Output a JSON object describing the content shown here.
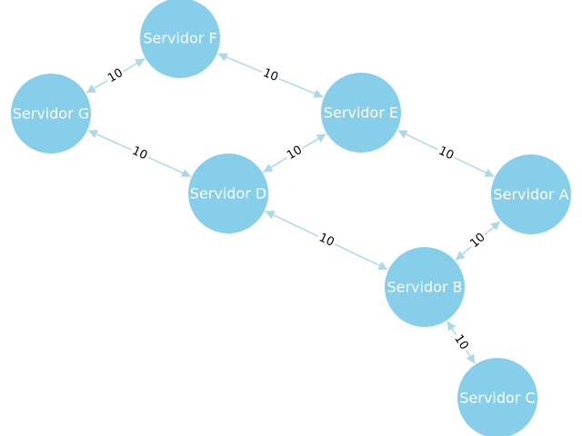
{
  "colors": {
    "node_fill": "#87ceeb",
    "node_text": "#ffffff",
    "edge": "#add8e6",
    "label_text": "#000000",
    "background": "#ffffff"
  },
  "nodes": [
    {
      "id": "F",
      "label": "Servidor F"
    },
    {
      "id": "G",
      "label": "Servidor G"
    },
    {
      "id": "E",
      "label": "Servidor E"
    },
    {
      "id": "D",
      "label": "Servidor D"
    },
    {
      "id": "A",
      "label": "Servidor A"
    },
    {
      "id": "B",
      "label": "Servidor B"
    },
    {
      "id": "C",
      "label": "Servidor C"
    }
  ],
  "edges": [
    {
      "from": "G",
      "to": "F",
      "label": "10",
      "direction": "both"
    },
    {
      "from": "F",
      "to": "E",
      "label": "10",
      "direction": "both"
    },
    {
      "from": "G",
      "to": "D",
      "label": "10",
      "direction": "both"
    },
    {
      "from": "D",
      "to": "E",
      "label": "10",
      "direction": "both"
    },
    {
      "from": "E",
      "to": "A",
      "label": "10",
      "direction": "both"
    },
    {
      "from": "D",
      "to": "B",
      "label": "10",
      "direction": "both"
    },
    {
      "from": "B",
      "to": "A",
      "label": "10",
      "direction": "both"
    },
    {
      "from": "B",
      "to": "C",
      "label": "10",
      "direction": "both"
    }
  ]
}
